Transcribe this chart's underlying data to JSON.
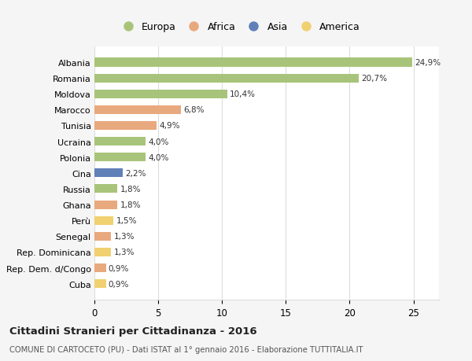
{
  "categories": [
    "Albania",
    "Romania",
    "Moldova",
    "Marocco",
    "Tunisia",
    "Ucraina",
    "Polonia",
    "Cina",
    "Russia",
    "Ghana",
    "Perù",
    "Senegal",
    "Rep. Dominicana",
    "Rep. Dem. d/Congo",
    "Cuba"
  ],
  "values": [
    24.9,
    20.7,
    10.4,
    6.8,
    4.9,
    4.0,
    4.0,
    2.2,
    1.8,
    1.8,
    1.5,
    1.3,
    1.3,
    0.9,
    0.9
  ],
  "labels": [
    "24,9%",
    "20,7%",
    "10,4%",
    "6,8%",
    "4,9%",
    "4,0%",
    "4,0%",
    "2,2%",
    "1,8%",
    "1,8%",
    "1,5%",
    "1,3%",
    "1,3%",
    "0,9%",
    "0,9%"
  ],
  "continents": [
    "Europa",
    "Europa",
    "Europa",
    "Africa",
    "Africa",
    "Europa",
    "Europa",
    "Asia",
    "Europa",
    "Africa",
    "America",
    "Africa",
    "America",
    "Africa",
    "America"
  ],
  "colors": {
    "Europa": "#a8c47a",
    "Africa": "#e8a97e",
    "Asia": "#6080b8",
    "America": "#f0d070"
  },
  "legend_order": [
    "Europa",
    "Africa",
    "Asia",
    "America"
  ],
  "title": "Cittadini Stranieri per Cittadinanza - 2016",
  "subtitle": "COMUNE DI CARTOCETO (PU) - Dati ISTAT al 1° gennaio 2016 - Elaborazione TUTTITALIA.IT",
  "xlim": [
    0,
    27
  ],
  "xticks": [
    0,
    5,
    10,
    15,
    20,
    25
  ],
  "background_color": "#f5f5f5",
  "bar_background": "#ffffff",
  "grid_color": "#dddddd"
}
